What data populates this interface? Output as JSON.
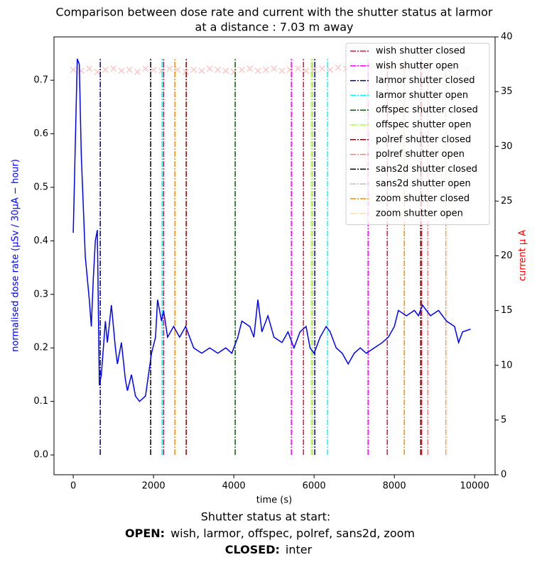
{
  "chart_data": {
    "type": "line",
    "title": "Comparison between dose rate and current with the shutter status at larmor",
    "subtitle": "at a distance : 7.03 m away",
    "xlabel": "time (s)",
    "ylabel": "normalised dose rate (μSv / 30μA − hour)",
    "y2label": "current μ A",
    "xlim": [
      -480,
      10510
    ],
    "xticks": [
      0,
      2000,
      4000,
      6000,
      8000,
      10000
    ],
    "ylim": [
      -0.037,
      0.781
    ],
    "yticks": [
      {
        "value": 0,
        "label": "0.0"
      },
      0.1,
      0.2,
      0.3,
      0.4,
      0.5,
      0.6,
      0.7
    ],
    "y2lim": [
      0,
      40
    ],
    "y2ticks": [
      0,
      5,
      10,
      15,
      20,
      25,
      30,
      35,
      40
    ],
    "series": [
      {
        "name": "dose rate",
        "color": "#0000ff",
        "x": [
          0,
          100,
          150,
          200,
          300,
          400,
          450,
          500,
          550,
          600,
          650,
          700,
          800,
          850,
          950,
          1050,
          1100,
          1200,
          1300,
          1350,
          1450,
          1550,
          1650,
          1800,
          1950,
          2050,
          2100,
          2200,
          2250,
          2350,
          2500,
          2650,
          2800,
          3000,
          3200,
          3400,
          3600,
          3800,
          3950,
          4100,
          4200,
          4400,
          4500,
          4600,
          4700,
          4850,
          5000,
          5200,
          5350,
          5500,
          5650,
          5800,
          5900,
          6000,
          6150,
          6300,
          6400,
          6550,
          6700,
          6850,
          7000,
          7150,
          7300,
          7500,
          7700,
          7850,
          8000,
          8100,
          8300,
          8500,
          8600,
          8700,
          8900,
          9100,
          9300,
          9500,
          9600,
          9700,
          9900
        ],
        "values": [
          0.415,
          0.74,
          0.73,
          0.56,
          0.37,
          0.29,
          0.24,
          0.33,
          0.4,
          0.42,
          0.13,
          0.15,
          0.25,
          0.21,
          0.28,
          0.2,
          0.17,
          0.21,
          0.14,
          0.12,
          0.15,
          0.11,
          0.1,
          0.11,
          0.19,
          0.22,
          0.29,
          0.25,
          0.27,
          0.22,
          0.24,
          0.22,
          0.24,
          0.2,
          0.19,
          0.2,
          0.19,
          0.2,
          0.19,
          0.22,
          0.25,
          0.24,
          0.22,
          0.29,
          0.23,
          0.26,
          0.22,
          0.21,
          0.23,
          0.2,
          0.23,
          0.24,
          0.2,
          0.19,
          0.22,
          0.24,
          0.23,
          0.2,
          0.19,
          0.17,
          0.19,
          0.2,
          0.19,
          0.2,
          0.21,
          0.22,
          0.24,
          0.27,
          0.26,
          0.27,
          0.26,
          0.28,
          0.26,
          0.27,
          0.25,
          0.24,
          0.21,
          0.23,
          0.235
        ]
      },
      {
        "name": "current",
        "color": "#ff0000",
        "axis": "y2",
        "marker": "x",
        "x": [
          0,
          200,
          400,
          600,
          800,
          1000,
          1200,
          1400,
          1600,
          1800,
          2000,
          2200,
          2400,
          2600,
          2800,
          3000,
          3200,
          3400,
          3600,
          3800,
          4000,
          4200,
          4400,
          4600,
          4800,
          5000,
          5200,
          5400,
          5600,
          5800,
          6000,
          6200,
          6400,
          6600,
          6800,
          7000,
          7200,
          7400,
          7600,
          7800,
          8000,
          8200,
          8400,
          8600,
          8800,
          9000,
          9200,
          9400,
          9600,
          9800
        ],
        "values": [
          37.0,
          36.9,
          37.1,
          36.8,
          37.0,
          37.1,
          36.9,
          37.0,
          36.8,
          37.1,
          37.0,
          36.9,
          37.1,
          37.0,
          36.8,
          37.0,
          36.9,
          37.1,
          37.0,
          36.9,
          36.8,
          37.0,
          37.1,
          36.9,
          37.0,
          37.1,
          36.9,
          37.0,
          37.1,
          36.9,
          37.0,
          37.1,
          37.0,
          37.2,
          37.1,
          37.0,
          37.2,
          37.1,
          37.0,
          37.1,
          37.2,
          37.0,
          37.1,
          37.2,
          37.1,
          37.0,
          37.1,
          37.0,
          36.9,
          37.0
        ]
      }
    ],
    "vlines_ylim": [
      0,
      0.74
    ],
    "shutter_events": [
      {
        "name": "wish shutter closed",
        "color": "#dc143c",
        "x": [
          2250,
          5735,
          7823,
          9292,
          8680
        ]
      },
      {
        "name": "wish shutter open",
        "color": "#ff00ff",
        "x": [
          5434,
          7345
        ]
      },
      {
        "name": "larmor shutter closed",
        "color": "#000080",
        "x": [
          673,
          6018
        ]
      },
      {
        "name": "larmor shutter open",
        "color": "#00ffff",
        "x": [
          2212,
          6336
        ]
      },
      {
        "name": "offspec shutter closed",
        "color": "#006400",
        "x": [
          4035
        ]
      },
      {
        "name": "offspec shutter open",
        "color": "#adff2f",
        "x": [
          5929
        ]
      },
      {
        "name": "polref shutter closed",
        "color": "#8b0000",
        "x": [
          2814,
          8655
        ]
      },
      {
        "name": "polref shutter open",
        "color": "#f08080",
        "x": [
          8832
        ]
      },
      {
        "name": "sans2d shutter closed",
        "color": "#000000",
        "x": [
          1929
        ]
      },
      {
        "name": "sans2d shutter open",
        "color": "#c0c0c0",
        "x": [
          5965
        ]
      },
      {
        "name": "zoom shutter closed",
        "color": "#ff8c00",
        "x": [
          2531,
          8248
        ]
      },
      {
        "name": "zoom shutter open",
        "color": "#ffdab9",
        "x": [
          9300
        ]
      }
    ],
    "caption": {
      "title": "Shutter status at start:",
      "open_label": "OPEN:",
      "open_list": "wish, larmor, offspec, polref, sans2d, zoom",
      "closed_label": "CLOSED:",
      "closed_list": "inter"
    }
  }
}
